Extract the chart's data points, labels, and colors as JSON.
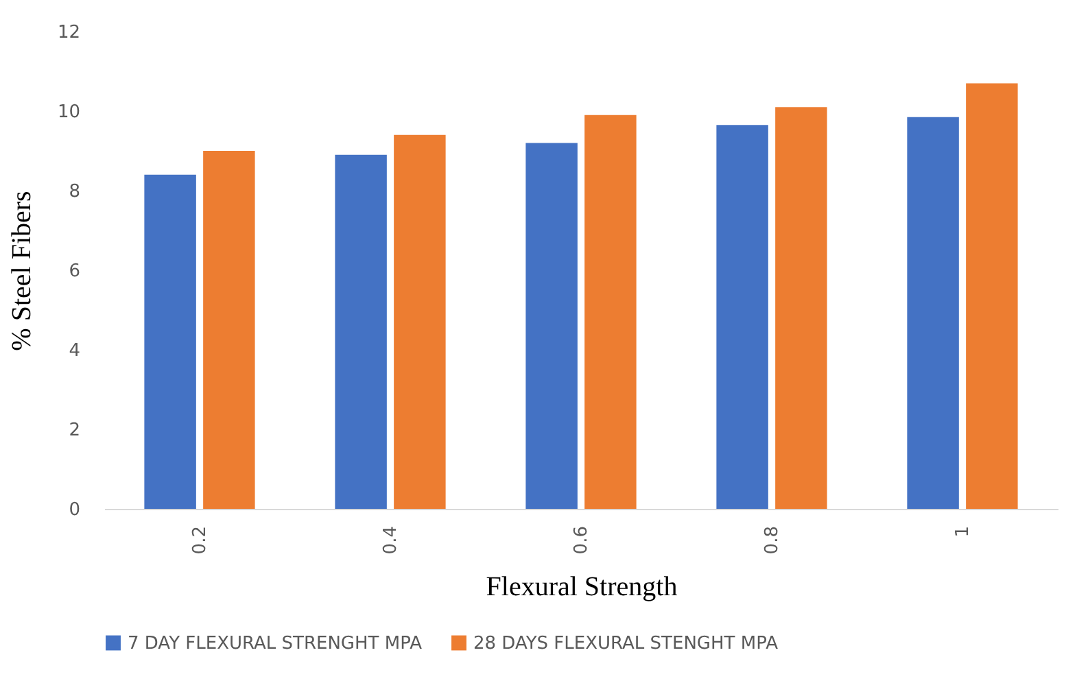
{
  "chart_data": {
    "type": "bar",
    "xlabel": "Flexural Strength",
    "ylabel": "% Steel Fibers",
    "categories": [
      "0.2",
      "0.4",
      "0.6",
      "0.8",
      "1"
    ],
    "series": [
      {
        "name": "7 DAY FLEXURAL STRENGHT MPA",
        "color": "#4472c4",
        "values": [
          8.4,
          8.9,
          9.2,
          9.65,
          9.85
        ]
      },
      {
        "name": "28 DAYS FLEXURAL STENGHT MPA",
        "color": "#ed7d31",
        "values": [
          9.0,
          9.4,
          9.9,
          10.1,
          10.7
        ]
      }
    ],
    "ylim": [
      0,
      12
    ],
    "yticks": [
      0,
      2,
      4,
      6,
      8,
      10,
      12
    ],
    "grid": false,
    "legend": "bottom"
  }
}
